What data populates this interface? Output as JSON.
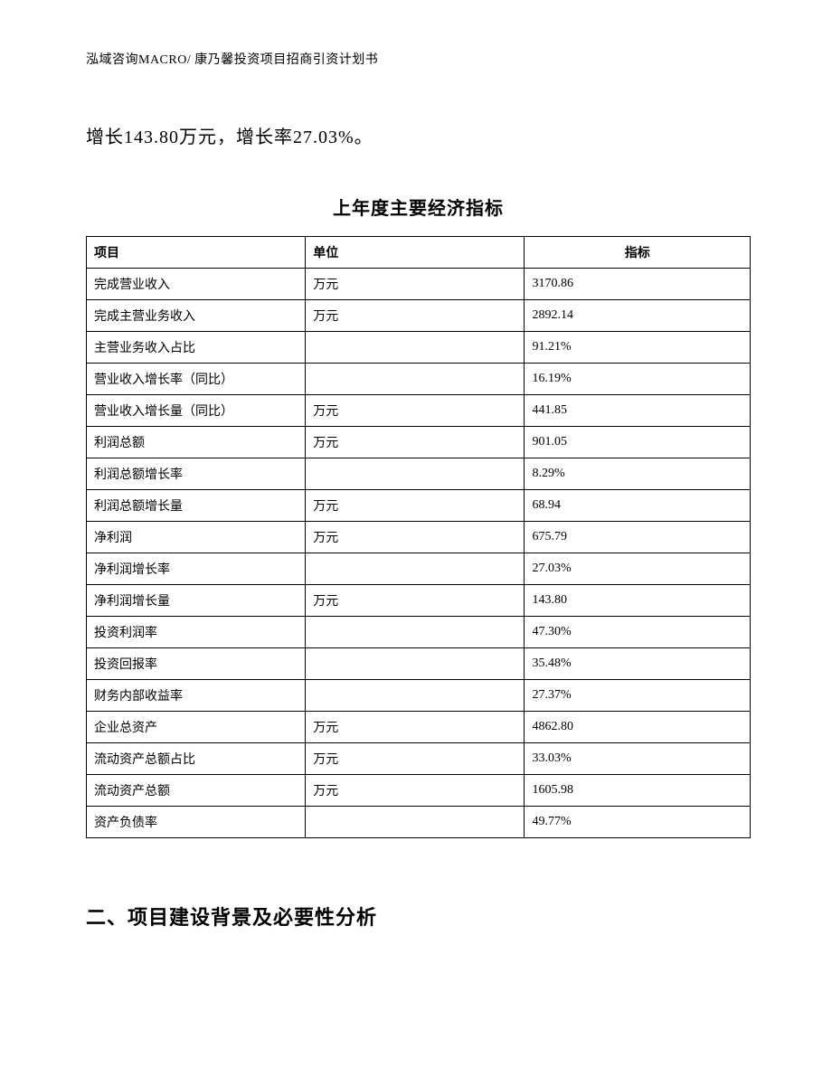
{
  "header": "泓域咨询MACRO/ 康乃馨投资项目招商引资计划书",
  "intro_text": "增长143.80万元，增长率27.03%。",
  "table": {
    "title": "上年度主要经济指标",
    "columns": [
      "项目",
      "单位",
      "指标"
    ],
    "rows": [
      [
        "完成营业收入",
        "万元",
        "3170.86"
      ],
      [
        "完成主营业务收入",
        "万元",
        "2892.14"
      ],
      [
        "主营业务收入占比",
        "",
        "91.21%"
      ],
      [
        "营业收入增长率（同比）",
        "",
        "16.19%"
      ],
      [
        "营业收入增长量（同比）",
        "万元",
        "441.85"
      ],
      [
        "利润总额",
        "万元",
        "901.05"
      ],
      [
        "利润总额增长率",
        "",
        "8.29%"
      ],
      [
        "利润总额增长量",
        "万元",
        "68.94"
      ],
      [
        "净利润",
        "万元",
        "675.79"
      ],
      [
        "净利润增长率",
        "",
        "27.03%"
      ],
      [
        "净利润增长量",
        "万元",
        "143.80"
      ],
      [
        "投资利润率",
        "",
        "47.30%"
      ],
      [
        "投资回报率",
        "",
        "35.48%"
      ],
      [
        "财务内部收益率",
        "",
        "27.37%"
      ],
      [
        "企业总资产",
        "万元",
        "4862.80"
      ],
      [
        "流动资产总额占比",
        "万元",
        "33.03%"
      ],
      [
        "流动资产总额",
        "万元",
        "1605.98"
      ],
      [
        "资产负债率",
        "",
        "49.77%"
      ]
    ]
  },
  "section_heading": "二、项目建设背景及必要性分析"
}
